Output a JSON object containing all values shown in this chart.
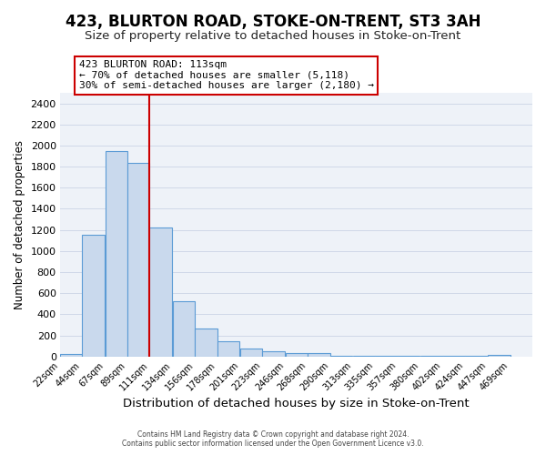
{
  "title": "423, BLURTON ROAD, STOKE-ON-TRENT, ST3 3AH",
  "subtitle": "Size of property relative to detached houses in Stoke-on-Trent",
  "xlabel": "Distribution of detached houses by size in Stoke-on-Trent",
  "ylabel": "Number of detached properties",
  "bar_left_edges": [
    22,
    44,
    67,
    89,
    111,
    134,
    156,
    178,
    201,
    223,
    246,
    268,
    290,
    313,
    335,
    357,
    380,
    402,
    424,
    447
  ],
  "bar_heights": [
    25,
    1150,
    1950,
    1840,
    1220,
    520,
    265,
    148,
    75,
    45,
    35,
    35,
    10,
    10,
    10,
    10,
    5,
    5,
    5,
    15
  ],
  "bin_width": 22,
  "tick_labels": [
    "22sqm",
    "44sqm",
    "67sqm",
    "89sqm",
    "111sqm",
    "134sqm",
    "156sqm",
    "178sqm",
    "201sqm",
    "223sqm",
    "246sqm",
    "268sqm",
    "290sqm",
    "313sqm",
    "335sqm",
    "357sqm",
    "380sqm",
    "402sqm",
    "424sqm",
    "447sqm",
    "469sqm"
  ],
  "bar_face_color": "#c9d9ed",
  "bar_edge_color": "#5b9bd5",
  "marker_x": 111,
  "marker_color": "#cc0000",
  "ylim": [
    0,
    2500
  ],
  "yticks": [
    0,
    200,
    400,
    600,
    800,
    1000,
    1200,
    1400,
    1600,
    1800,
    2000,
    2200,
    2400
  ],
  "annotation_title": "423 BLURTON ROAD: 113sqm",
  "annotation_line1": "← 70% of detached houses are smaller (5,118)",
  "annotation_line2": "30% of semi-detached houses are larger (2,180) →",
  "annotation_box_color": "#ffffff",
  "annotation_box_edge": "#cc0000",
  "grid_color": "#d0d8e8",
  "bg_color": "#eef2f8",
  "footer1": "Contains HM Land Registry data © Crown copyright and database right 2024.",
  "footer2": "Contains public sector information licensed under the Open Government Licence v3.0.",
  "title_fontsize": 12,
  "subtitle_fontsize": 9.5,
  "xlabel_fontsize": 9.5,
  "ylabel_fontsize": 8.5,
  "xlim_left": 22,
  "xlim_right": 491
}
